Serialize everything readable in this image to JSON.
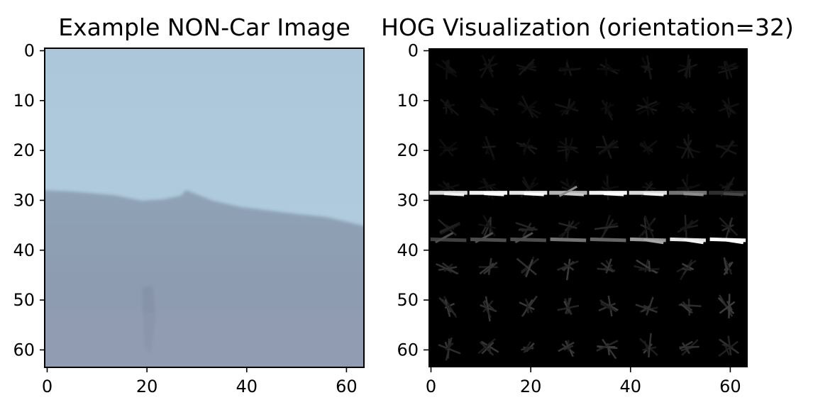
{
  "chart_data": [
    {
      "type": "image",
      "title": "Example NON-Car Image",
      "image_size": [
        64,
        64
      ],
      "xticks": [
        0,
        20,
        40,
        60
      ],
      "yticks": [
        0,
        10,
        20,
        30,
        40,
        50,
        60
      ],
      "xlim": [
        -0.5,
        63.5
      ],
      "ylim": [
        63.5,
        -0.5
      ],
      "content": "sky above a hazy mountain ridge",
      "colors": {
        "sky": "#b3cfe1",
        "sky_top": "#acc6da",
        "ridge": "#8fa2b6",
        "mountain": "#8e9cb2",
        "mountain_low": "#909bb1"
      }
    },
    {
      "type": "image",
      "title": "HOG Visualization (orientation=32)",
      "image_size": [
        64,
        64
      ],
      "orientations": 32,
      "xticks": [
        0,
        20,
        40,
        60
      ],
      "yticks": [
        0,
        10,
        20,
        30,
        40,
        50,
        60
      ],
      "xlim": [
        -0.5,
        63.5
      ],
      "ylim": [
        63.5,
        -0.5
      ],
      "background": "#000000",
      "colors": {
        "gradient_strong": "#ffffff",
        "gradient_weak": "#6e6e6e"
      }
    }
  ]
}
